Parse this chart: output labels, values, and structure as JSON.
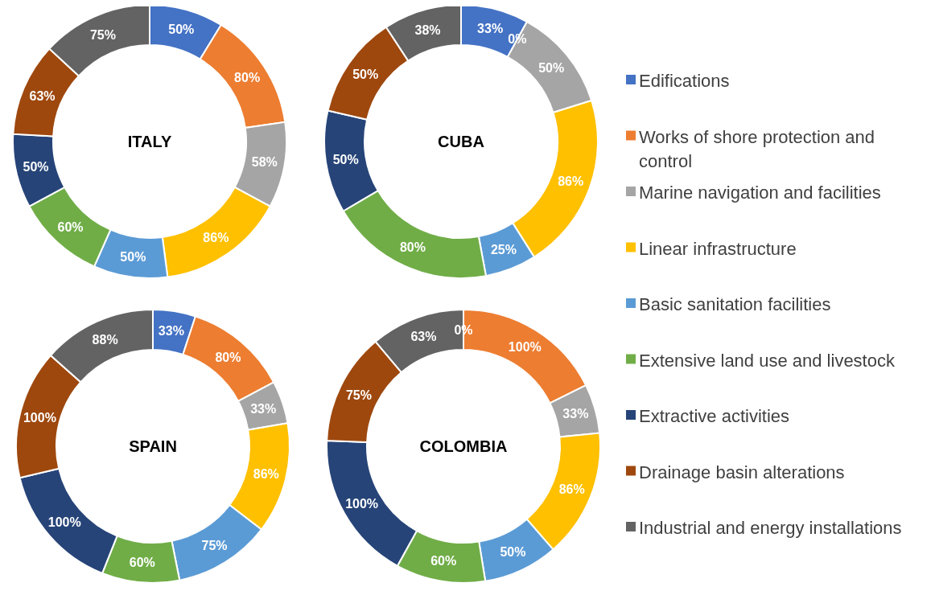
{
  "chart_data": [
    {
      "type": "donut",
      "title": "ITALY",
      "categories": [
        "Edifications",
        "Works of shore protection and control",
        "Marine navigation and facilities",
        "Linear infrastructure",
        "Basic sanitation facilities",
        "Extensive land use and livestock",
        "Extractive activities",
        "Drainage basin alterations",
        "Industrial and energy installations"
      ],
      "values": [
        50,
        80,
        58,
        86,
        50,
        60,
        50,
        63,
        75
      ],
      "colors": [
        "#4472c4",
        "#ed7d31",
        "#a5a5a5",
        "#ffc000",
        "#5b9bd5",
        "#70ad47",
        "#264478",
        "#9e480e",
        "#636363"
      ],
      "value_labels": [
        "50%",
        "80%",
        "58%",
        "86%",
        "50%",
        "60%",
        "50%",
        "63%",
        "75%"
      ],
      "legend": "right"
    },
    {
      "type": "donut",
      "title": "CUBA",
      "categories": [
        null,
        null,
        null,
        null,
        null,
        null,
        null,
        null,
        null
      ],
      "values": [
        33,
        0,
        50,
        86,
        25,
        80,
        50,
        50,
        38
      ],
      "colors": [
        "#4472c4",
        "#ed7d31",
        "#a5a5a5",
        "#ffc000",
        "#5b9bd5",
        "#70ad47",
        "#264478",
        "#9e480e",
        "#636363"
      ],
      "value_labels": [
        "33%",
        "0%",
        "50%",
        "86%",
        "25%",
        "80%",
        "50%",
        "50%",
        "38%"
      ]
    },
    {
      "type": "donut",
      "title": "SPAIN",
      "categories": [
        null,
        null,
        null,
        null,
        null,
        null,
        null,
        null,
        null
      ],
      "values": [
        33,
        80,
        33,
        86,
        75,
        60,
        100,
        100,
        88
      ],
      "colors": [
        "#4472c4",
        "#ed7d31",
        "#a5a5a5",
        "#ffc000",
        "#5b9bd5",
        "#70ad47",
        "#264478",
        "#9e480e",
        "#636363"
      ],
      "value_labels": [
        "33%",
        "80%",
        "33%",
        "86%",
        "75%",
        "60%",
        "100%",
        "100%",
        "88%"
      ]
    },
    {
      "type": "donut",
      "title": "COLOMBIA",
      "categories": [
        null,
        null,
        null,
        null,
        null,
        null,
        null,
        null,
        null
      ],
      "values": [
        0,
        100,
        33,
        86,
        50,
        60,
        100,
        75,
        63
      ],
      "colors": [
        "#4472c4",
        "#ed7d31",
        "#a5a5a5",
        "#ffc000",
        "#5b9bd5",
        "#70ad47",
        "#264478",
        "#9e480e",
        "#636363"
      ],
      "value_labels": [
        "0%",
        "100%",
        "33%",
        "86%",
        "50%",
        "60%",
        "100%",
        "75%",
        "63%"
      ]
    }
  ]
}
